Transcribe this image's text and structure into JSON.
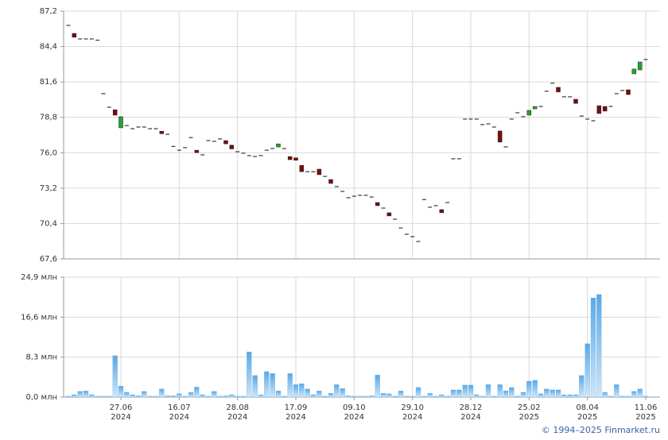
{
  "chart_data": [
    {
      "type": "candlestick",
      "open": [
        86.07,
        85.44,
        85.0,
        85.0,
        85.0,
        84.9,
        80.67,
        79.6,
        79.4,
        77.97,
        78.15,
        77.9,
        78.03,
        78.03,
        77.9,
        77.9,
        77.7,
        77.46,
        76.5,
        76.2,
        76.4,
        77.2,
        76.2,
        75.83,
        76.96,
        76.9,
        77.09,
        76.96,
        76.6,
        76.08,
        75.96,
        75.77,
        75.7,
        75.77,
        76.2,
        76.33,
        76.45,
        76.33,
        75.7,
        75.6,
        75.0,
        74.5,
        74.5,
        74.7,
        74.13,
        73.88,
        73.32,
        72.94,
        72.44,
        72.56,
        72.63,
        72.63,
        72.5,
        72.06,
        71.62,
        71.25,
        70.74,
        70.05,
        69.55,
        69.36,
        68.98,
        72.3,
        71.69,
        71.81,
        71.5,
        72.06,
        75.52,
        75.52,
        78.66,
        78.66,
        78.66,
        78.22,
        78.28,
        78.03,
        77.72,
        76.46,
        78.66,
        79.16,
        78.85,
        78.97,
        79.47,
        79.66,
        80.86,
        81.5,
        81.17,
        80.42,
        80.42,
        80.23,
        78.9,
        78.66,
        78.53,
        79.72,
        79.66,
        79.66,
        80.67,
        80.92,
        80.98,
        82.24,
        82.55,
        83.37
      ],
      "close": [
        86.07,
        85.13,
        85.0,
        85.0,
        85.0,
        84.9,
        80.67,
        79.6,
        78.97,
        78.85,
        78.15,
        77.9,
        78.03,
        78.03,
        77.9,
        77.9,
        77.5,
        77.46,
        76.5,
        76.2,
        76.4,
        77.2,
        76.0,
        75.83,
        76.96,
        76.9,
        77.09,
        76.7,
        76.3,
        76.08,
        75.96,
        75.77,
        75.7,
        75.77,
        76.2,
        76.33,
        76.7,
        76.33,
        75.45,
        75.4,
        74.5,
        74.5,
        74.5,
        74.26,
        74.13,
        73.57,
        73.32,
        72.94,
        72.44,
        72.56,
        72.63,
        72.63,
        72.5,
        71.81,
        71.62,
        71.0,
        70.74,
        70.05,
        69.55,
        69.36,
        68.98,
        72.3,
        71.69,
        71.81,
        71.25,
        72.06,
        75.52,
        75.52,
        78.66,
        78.66,
        78.66,
        78.22,
        78.28,
        78.03,
        76.84,
        76.46,
        78.66,
        79.16,
        78.85,
        79.35,
        79.66,
        79.66,
        80.86,
        81.5,
        80.8,
        80.42,
        80.42,
        79.9,
        78.9,
        78.66,
        78.53,
        79.1,
        79.29,
        79.66,
        80.67,
        80.92,
        80.6,
        82.62,
        83.18,
        83.37
      ],
      "up_color": "#22a52f",
      "down_color": "#7a0c0c",
      "flat_color": "#111111",
      "ylim": [
        67.6,
        87.2
      ],
      "yticks": [
        {
          "value": 67.6,
          "label": "67,6"
        },
        {
          "value": 70.4,
          "label": "70,4"
        },
        {
          "value": 73.2,
          "label": "73,2"
        },
        {
          "value": 76.0,
          "label": "76,0"
        },
        {
          "value": 78.8,
          "label": "78,8"
        },
        {
          "value": 81.6,
          "label": "81,6"
        },
        {
          "value": 84.4,
          "label": "84,4"
        },
        {
          "value": 87.2,
          "label": "87,2"
        }
      ],
      "grid": true
    },
    {
      "type": "bar",
      "categories": [
        null,
        null,
        null,
        null,
        null,
        null,
        null,
        null,
        null,
        [
          "27.06",
          "2024"
        ],
        null,
        null,
        null,
        null,
        null,
        null,
        null,
        null,
        null,
        [
          "16.07",
          "2024"
        ],
        null,
        null,
        null,
        null,
        null,
        null,
        null,
        null,
        null,
        [
          "28.08",
          "2024"
        ],
        null,
        null,
        null,
        null,
        null,
        null,
        null,
        null,
        null,
        [
          "17.09",
          "2024"
        ],
        null,
        null,
        null,
        null,
        null,
        null,
        null,
        null,
        null,
        [
          "09.10",
          "2024"
        ],
        null,
        null,
        null,
        null,
        null,
        null,
        null,
        null,
        null,
        [
          "29.10",
          "2024"
        ],
        null,
        null,
        null,
        null,
        null,
        null,
        null,
        null,
        null,
        [
          "28.12",
          "2024"
        ],
        null,
        null,
        null,
        null,
        null,
        null,
        null,
        null,
        null,
        [
          "25.02",
          "2025"
        ],
        null,
        null,
        null,
        null,
        null,
        null,
        null,
        null,
        null,
        [
          "08.04",
          "2025"
        ],
        null,
        null,
        null,
        null,
        null,
        null,
        null,
        null,
        null,
        [
          "11.06",
          "2025"
        ]
      ],
      "values": [
        0.2,
        0.5,
        1.2,
        1.3,
        0.5,
        0.2,
        0.2,
        0.2,
        8.6,
        2.3,
        1.0,
        0.5,
        0.3,
        1.2,
        0.2,
        0.2,
        1.7,
        0.3,
        0.3,
        0.7,
        0.2,
        1.0,
        2.1,
        0.5,
        0.2,
        1.2,
        0.2,
        0.3,
        0.5,
        0.2,
        0.2,
        9.4,
        4.5,
        0.5,
        5.3,
        4.9,
        1.3,
        0.2,
        4.9,
        2.6,
        2.8,
        1.7,
        0.5,
        1.3,
        0.2,
        0.8,
        2.6,
        1.8,
        0.3,
        0.2,
        0.2,
        0.2,
        0.3,
        4.6,
        0.8,
        0.7,
        0.2,
        1.3,
        0.2,
        0.2,
        2.0,
        0.2,
        0.8,
        0.2,
        0.5,
        0.2,
        1.5,
        1.5,
        2.5,
        2.5,
        0.5,
        0.2,
        2.6,
        0.2,
        2.6,
        1.3,
        2.0,
        0.2,
        1.0,
        3.3,
        3.5,
        0.7,
        1.7,
        1.5,
        1.5,
        0.5,
        0.5,
        0.5,
        4.5,
        11.1,
        20.6,
        21.3,
        1.0,
        0.2,
        2.6,
        0.2,
        0.2,
        1.2,
        1.7,
        0.2
      ],
      "color": "#6db4ea",
      "ylim": [
        0,
        24.9
      ],
      "yticks": [
        {
          "value": 0,
          "label": "0,0 млн"
        },
        {
          "value": 8.3,
          "label": "8,3 млн"
        },
        {
          "value": 16.6,
          "label": "16,6 млн"
        },
        {
          "value": 24.9,
          "label": "24,9 млн"
        }
      ],
      "grid": true
    }
  ],
  "footer": "© 1994–2025 Finmarket.ru"
}
